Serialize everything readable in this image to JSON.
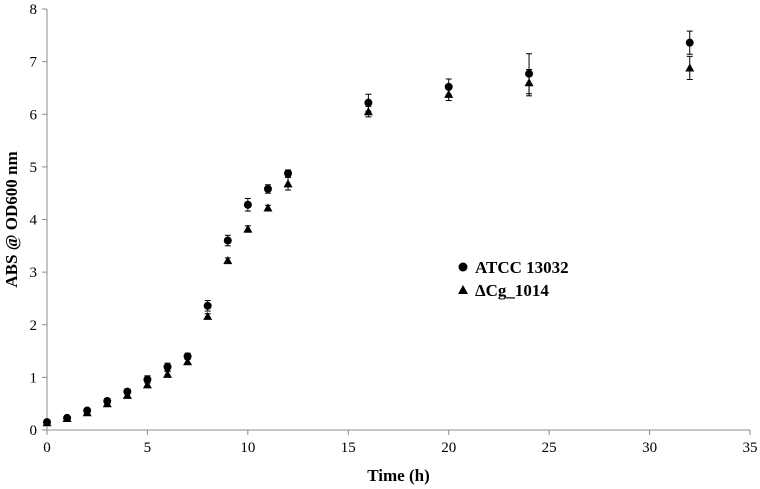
{
  "chart_data": {
    "type": "scatter",
    "title": "",
    "xlabel": "Time (h)",
    "ylabel": "ABS @ OD600 nm",
    "xlim": [
      0,
      35
    ],
    "ylim": [
      0,
      8
    ],
    "xticks": [
      0,
      5,
      10,
      15,
      20,
      25,
      30,
      35
    ],
    "yticks": [
      0,
      1,
      2,
      3,
      4,
      5,
      6,
      7,
      8
    ],
    "grid": false,
    "legend_position": "right-center",
    "series": [
      {
        "name": "ATCC 13032",
        "marker": "circle",
        "color": "#000000",
        "x": [
          0,
          1,
          2,
          3,
          4,
          5,
          6,
          7,
          8,
          9,
          10,
          11,
          12,
          16,
          20,
          24,
          32
        ],
        "y": [
          0.15,
          0.23,
          0.37,
          0.55,
          0.73,
          0.96,
          1.2,
          1.4,
          2.36,
          3.6,
          4.28,
          4.58,
          4.88,
          6.22,
          6.52,
          6.77,
          7.36
        ],
        "err": [
          0.03,
          0.03,
          0.04,
          0.05,
          0.05,
          0.07,
          0.07,
          0.06,
          0.1,
          0.1,
          0.12,
          0.08,
          0.06,
          0.16,
          0.15,
          0.38,
          0.22
        ]
      },
      {
        "name": "ΔCg_1014",
        "marker": "triangle",
        "color": "#000000",
        "x": [
          0,
          1,
          2,
          3,
          4,
          5,
          6,
          7,
          8,
          9,
          10,
          11,
          12,
          16,
          20,
          24,
          32
        ],
        "y": [
          0.14,
          0.22,
          0.33,
          0.5,
          0.66,
          0.86,
          1.06,
          1.3,
          2.16,
          3.22,
          3.82,
          4.22,
          4.68,
          6.05,
          6.38,
          6.6,
          6.88
        ],
        "err": [
          0.02,
          0.02,
          0.03,
          0.04,
          0.04,
          0.05,
          0.05,
          0.05,
          0.05,
          0.05,
          0.06,
          0.05,
          0.12,
          0.1,
          0.12,
          0.25,
          0.22
        ]
      }
    ]
  }
}
